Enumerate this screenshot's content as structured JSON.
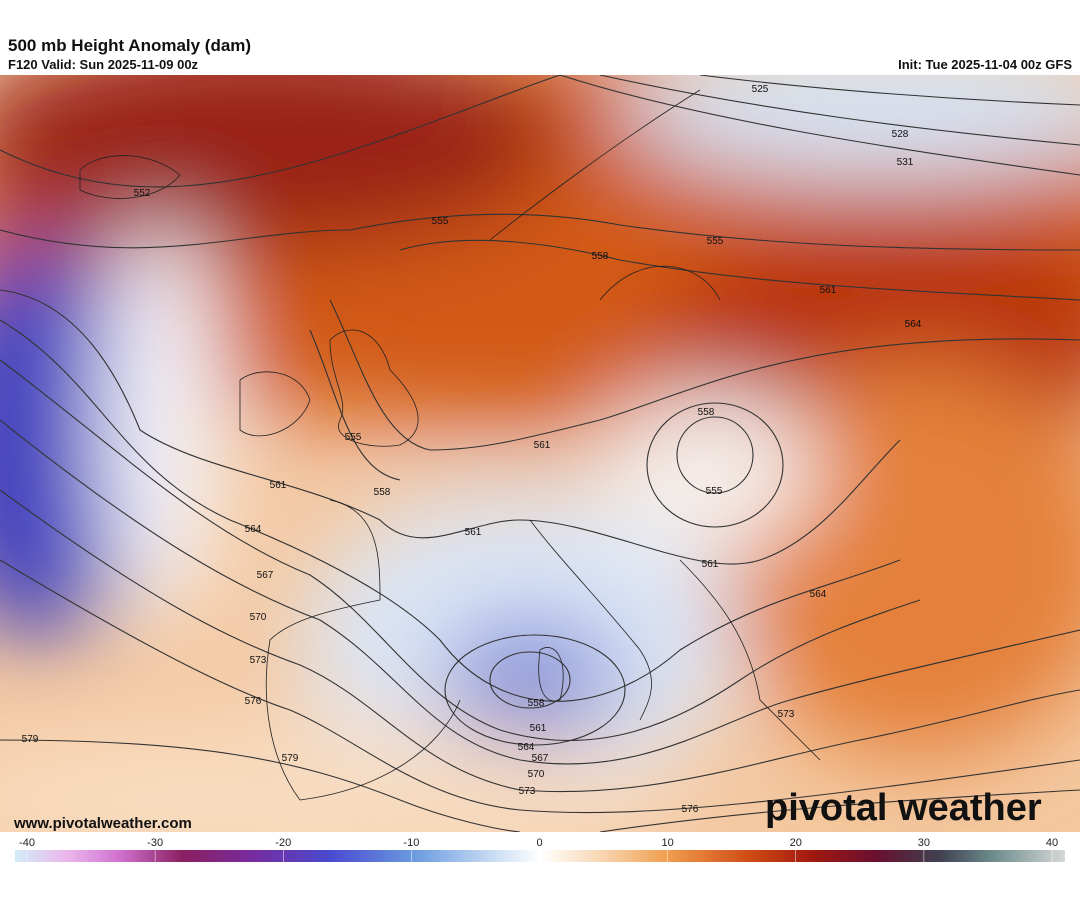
{
  "header": {
    "title": "500 mb Height Anomaly (dam)",
    "valid": "F120 Valid: Sun 2025-11-09 00z",
    "init": "Init: Tue 2025-11-04 00z GFS"
  },
  "map": {
    "contour_labels": [
      552,
      555,
      558,
      555,
      561,
      564,
      525,
      528,
      531,
      555,
      558,
      561,
      558,
      555,
      561,
      564,
      567,
      570,
      573,
      576,
      579,
      579,
      561,
      561,
      564,
      558,
      561,
      564,
      567,
      570,
      573,
      573,
      576
    ]
  },
  "footer": {
    "website": "www.pivotalweather.com",
    "logo": "pivotal weather"
  },
  "colorbar": {
    "range": [
      -40,
      40
    ],
    "ticks": [
      -40,
      -30,
      -20,
      -10,
      0,
      10,
      20,
      30,
      40
    ]
  }
}
